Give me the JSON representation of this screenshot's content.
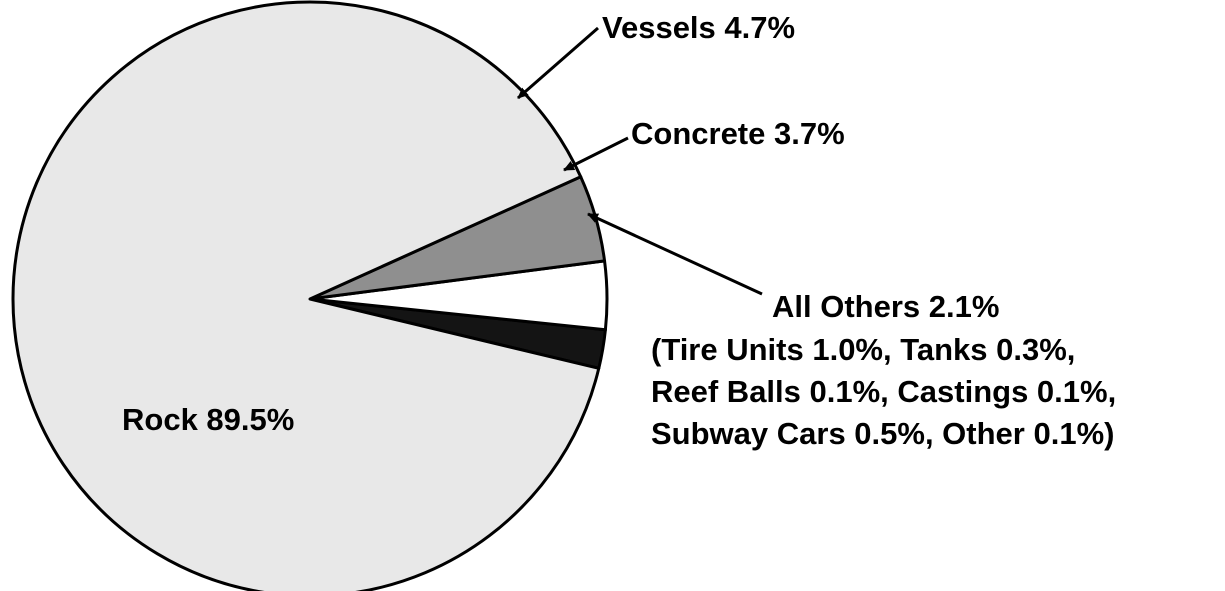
{
  "chart_data": {
    "type": "pie",
    "slices": [
      {
        "label": "Rock",
        "value": 89.5,
        "color": "#e8e8e8"
      },
      {
        "label": "Vessels",
        "value": 4.7,
        "color": "#8f8f8f"
      },
      {
        "label": "Concrete",
        "value": 3.7,
        "color": "#ffffff"
      },
      {
        "label": "All Others",
        "value": 2.1,
        "color": "#141414"
      }
    ],
    "labels": {
      "rock": "Rock 89.5%",
      "vessels": "Vessels 4.7%",
      "concrete": "Concrete 3.7%",
      "others": "All Others 2.1%"
    },
    "others_breakdown": [
      "(Tire Units 1.0%, Tanks 0.3%,",
      "Reef Balls 0.1%, Castings 0.1%,",
      "Subway Cars 0.5%, Other 0.1%)"
    ],
    "others_items": [
      {
        "label": "Tire Units",
        "value": 1.0
      },
      {
        "label": "Tanks",
        "value": 0.3
      },
      {
        "label": "Reef Balls",
        "value": 0.1
      },
      {
        "label": "Castings",
        "value": 0.1
      },
      {
        "label": "Subway Cars",
        "value": 0.5
      },
      {
        "label": "Other",
        "value": 0.1
      }
    ]
  }
}
